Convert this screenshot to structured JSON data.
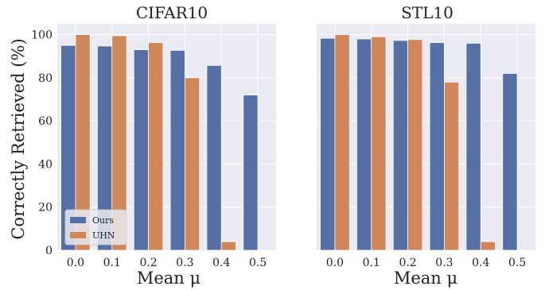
{
  "colors": {
    "panel_bg": "#eaeaf2",
    "grid": "#ffffff",
    "Ours": "#5470a5",
    "UHN": "#d08659"
  },
  "chart_data": [
    {
      "type": "bar",
      "title": "CIFAR10",
      "xlabel": "Mean μ",
      "ylabel": "Correctly Retrieved (%)",
      "categories": [
        "0.0",
        "0.1",
        "0.2",
        "0.3",
        "0.4",
        "0.5"
      ],
      "ylim": [
        0,
        105
      ],
      "yticks": [
        0,
        20,
        40,
        60,
        80,
        100
      ],
      "grid": true,
      "legend_position": "lower-left",
      "series": [
        {
          "name": "Ours",
          "values": [
            95,
            94.7,
            93,
            92.7,
            85.7,
            72
          ]
        },
        {
          "name": "UHN",
          "values": [
            100,
            99.5,
            96.3,
            80,
            4,
            0
          ]
        }
      ]
    },
    {
      "type": "bar",
      "title": "STL10",
      "xlabel": "Mean μ",
      "ylabel": "",
      "categories": [
        "0.0",
        "0.1",
        "0.2",
        "0.3",
        "0.4",
        "0.5"
      ],
      "ylim": [
        0,
        105
      ],
      "yticks": [
        0,
        20,
        40,
        60,
        80,
        100
      ],
      "grid": true,
      "series": [
        {
          "name": "Ours",
          "values": [
            98.3,
            98,
            97.3,
            96.3,
            96,
            82
          ]
        },
        {
          "name": "UHN",
          "values": [
            100,
            99,
            97.7,
            78,
            4,
            0
          ]
        }
      ]
    }
  ]
}
